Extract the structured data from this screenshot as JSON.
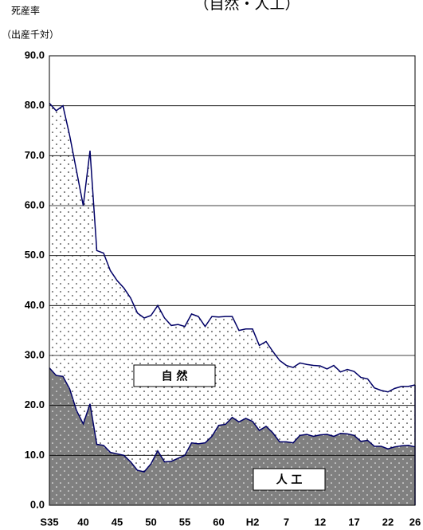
{
  "chart_data": {
    "type": "stacked-area",
    "title": "（自然・人工）",
    "ylabel": "死産率",
    "ylabel_unit": "（出産千対）",
    "categories": [
      "S35",
      null,
      null,
      null,
      null,
      "40",
      null,
      null,
      null,
      null,
      "45",
      null,
      null,
      null,
      null,
      "50",
      null,
      null,
      null,
      null,
      "55",
      null,
      null,
      null,
      null,
      "60",
      null,
      null,
      null,
      null,
      "H2",
      null,
      null,
      null,
      null,
      "7",
      null,
      null,
      null,
      null,
      "12",
      null,
      null,
      null,
      null,
      "17",
      null,
      null,
      null,
      null,
      "22",
      null,
      null,
      null,
      "26"
    ],
    "series": [
      {
        "name": "人 工",
        "color": "#808080",
        "values": [
          27.5,
          26.0,
          25.8,
          23.3,
          19.0,
          16.3,
          20.3,
          12.2,
          12.0,
          10.6,
          10.3,
          10.0,
          8.7,
          7.0,
          6.7,
          8.3,
          10.9,
          8.7,
          8.8,
          9.4,
          10.0,
          12.5,
          12.3,
          12.5,
          13.8,
          16.0,
          16.2,
          17.6,
          16.7,
          17.4,
          16.8,
          15.0,
          15.8,
          14.5,
          12.7,
          12.7,
          12.5,
          14.0,
          14.2,
          13.8,
          14.1,
          14.2,
          13.8,
          14.4,
          14.3,
          14.0,
          12.8,
          13.0,
          11.8,
          11.8,
          11.3,
          11.7,
          11.9,
          12.0,
          11.7
        ]
      },
      {
        "name": "自 然",
        "color": "#ffffff",
        "values": [
          53.0,
          53.0,
          54.2,
          50.7,
          48.0,
          43.7,
          50.7,
          38.8,
          38.5,
          36.4,
          34.7,
          33.5,
          32.8,
          31.5,
          30.8,
          29.7,
          29.1,
          28.8,
          27.2,
          26.8,
          25.8,
          25.8,
          25.5,
          23.3,
          24.0,
          21.7,
          21.6,
          20.2,
          18.3,
          17.9,
          18.5,
          17.0,
          17.0,
          16.3,
          16.3,
          15.3,
          15.1,
          14.5,
          14.0,
          14.2,
          13.8,
          13.1,
          14.2,
          12.3,
          12.9,
          12.8,
          12.8,
          12.3,
          11.7,
          11.2,
          11.4,
          11.7,
          11.9,
          11.8,
          12.4
        ]
      }
    ],
    "line_color": "#000066",
    "ylim": [
      0,
      90
    ],
    "yticks": [
      {
        "value": 0,
        "label": "0.0"
      },
      {
        "value": 10,
        "label": "10.0"
      },
      {
        "value": 20,
        "label": "20.0"
      },
      {
        "value": 30,
        "label": "30.0"
      },
      {
        "value": 40,
        "label": "40.0"
      },
      {
        "value": 50,
        "label": "50.0"
      },
      {
        "value": 60,
        "label": "60.0"
      },
      {
        "value": 70,
        "label": "70.0"
      },
      {
        "value": 80,
        "label": "80.0"
      },
      {
        "value": 90,
        "label": "90.0"
      }
    ],
    "grid": true
  }
}
